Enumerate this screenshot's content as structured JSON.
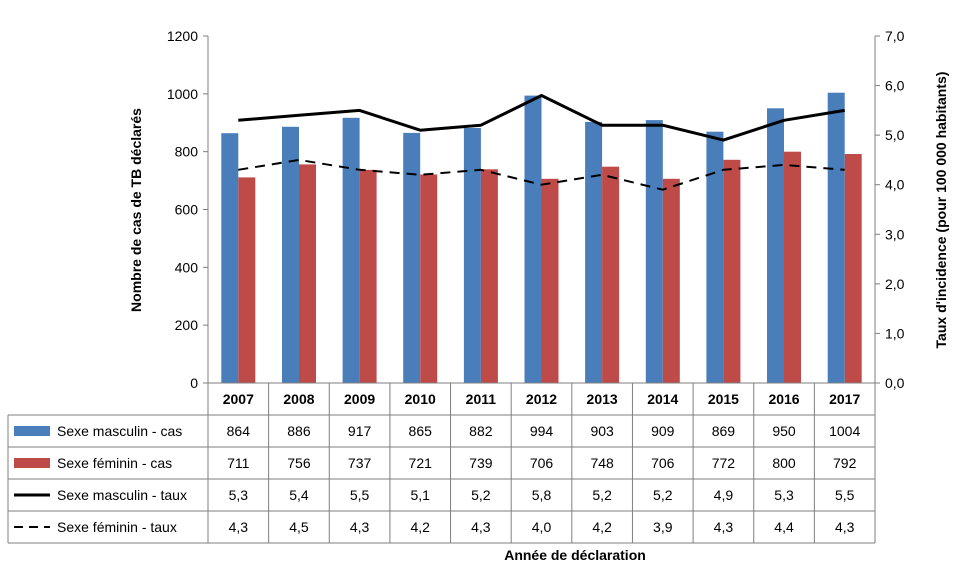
{
  "chart_data": {
    "type": "bar",
    "categories": [
      "2007",
      "2008",
      "2009",
      "2010",
      "2011",
      "2012",
      "2013",
      "2014",
      "2015",
      "2016",
      "2017"
    ],
    "xlabel": "Année de déclaration",
    "ylabel": "Nombre de cas de TB déclarés",
    "y2label": "Taux d'incidence (pour 100 000 habitants)",
    "ylim": [
      0,
      1200
    ],
    "y_ticks": [
      "0",
      "200",
      "400",
      "600",
      "800",
      "1000",
      "1200"
    ],
    "y2lim": [
      0,
      7
    ],
    "y2_ticks": [
      "0,0",
      "1,0",
      "2,0",
      "3,0",
      "4,0",
      "5,0",
      "6,0",
      "7,0"
    ],
    "grid": false,
    "legend": "table-below",
    "series": [
      {
        "name": "Sexe masculin - cas",
        "kind": "bar",
        "axis": "left",
        "color": "#4a7ebb",
        "values": [
          864,
          886,
          917,
          865,
          882,
          994,
          903,
          909,
          869,
          950,
          1004
        ],
        "labels": [
          "864",
          "886",
          "917",
          "865",
          "882",
          "994",
          "903",
          "909",
          "869",
          "950",
          "1004"
        ]
      },
      {
        "name": "Sexe féminin - cas",
        "kind": "bar",
        "axis": "left",
        "color": "#be4b48",
        "values": [
          711,
          756,
          737,
          721,
          739,
          706,
          748,
          706,
          772,
          800,
          792
        ],
        "labels": [
          "711",
          "756",
          "737",
          "721",
          "739",
          "706",
          "748",
          "706",
          "772",
          "800",
          "792"
        ]
      },
      {
        "name": "Sexe masculin - taux",
        "kind": "line",
        "axis": "right",
        "color": "#000000",
        "dash": "solid",
        "values": [
          5.3,
          5.4,
          5.5,
          5.1,
          5.2,
          5.8,
          5.2,
          5.2,
          4.9,
          5.3,
          5.5
        ],
        "labels": [
          "5,3",
          "5,4",
          "5,5",
          "5,1",
          "5,2",
          "5,8",
          "5,2",
          "5,2",
          "4,9",
          "5,3",
          "5,5"
        ]
      },
      {
        "name": "Sexe féminin - taux",
        "kind": "line",
        "axis": "right",
        "color": "#000000",
        "dash": "dashed",
        "values": [
          4.3,
          4.5,
          4.3,
          4.2,
          4.3,
          4.0,
          4.2,
          3.9,
          4.3,
          4.4,
          4.3
        ],
        "labels": [
          "4,3",
          "4,5",
          "4,3",
          "4,2",
          "4,3",
          "4,0",
          "4,2",
          "3,9",
          "4,3",
          "4,4",
          "4,3"
        ]
      }
    ]
  }
}
